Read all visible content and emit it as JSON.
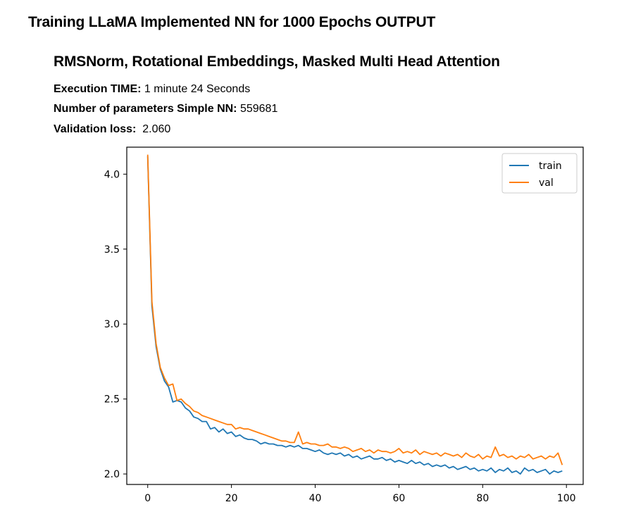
{
  "header": {
    "title": "Training LLaMA Implemented NN for 1000 Epochs OUTPUT",
    "subtitle": "RMSNorm, Rotational Embeddings, Masked Multi Head Attention"
  },
  "stats": [
    {
      "label": "Execution TIME:",
      "value": " 1 minute 24 Seconds"
    },
    {
      "label": "Number of parameters Simple NN:",
      "value": " 559681"
    },
    {
      "label": "Validation loss:",
      "value": "  2.060"
    }
  ],
  "chart_data": {
    "type": "line",
    "title": "",
    "xlabel": "",
    "ylabel": "",
    "xlim": [
      -5,
      104
    ],
    "ylim": [
      1.93,
      4.18
    ],
    "xticks": [
      0,
      20,
      40,
      60,
      80,
      100
    ],
    "yticks": [
      2.0,
      2.5,
      3.0,
      3.5,
      4.0
    ],
    "xtick_labels": [
      "0",
      "20",
      "40",
      "60",
      "80",
      "100"
    ],
    "ytick_labels": [
      "2.0",
      "2.5",
      "3.0",
      "3.5",
      "4.0"
    ],
    "legend_position": "top-right",
    "series": [
      {
        "name": "train",
        "color": "#1f77b4",
        "x": [
          0,
          1,
          2,
          3,
          4,
          5,
          6,
          7,
          8,
          9,
          10,
          11,
          12,
          13,
          14,
          15,
          16,
          17,
          18,
          19,
          20,
          21,
          22,
          23,
          24,
          25,
          26,
          27,
          28,
          29,
          30,
          31,
          32,
          33,
          34,
          35,
          36,
          37,
          38,
          39,
          40,
          41,
          42,
          43,
          44,
          45,
          46,
          47,
          48,
          49,
          50,
          51,
          52,
          53,
          54,
          55,
          56,
          57,
          58,
          59,
          60,
          61,
          62,
          63,
          64,
          65,
          66,
          67,
          68,
          69,
          70,
          71,
          72,
          73,
          74,
          75,
          76,
          77,
          78,
          79,
          80,
          81,
          82,
          83,
          84,
          85,
          86,
          87,
          88,
          89,
          90,
          91,
          92,
          93,
          94,
          95,
          96,
          97,
          98,
          99
        ],
        "values": [
          4.12,
          3.12,
          2.85,
          2.7,
          2.62,
          2.58,
          2.48,
          2.49,
          2.48,
          2.44,
          2.42,
          2.38,
          2.37,
          2.35,
          2.35,
          2.3,
          2.31,
          2.28,
          2.3,
          2.27,
          2.28,
          2.25,
          2.26,
          2.24,
          2.23,
          2.23,
          2.22,
          2.2,
          2.21,
          2.2,
          2.2,
          2.19,
          2.19,
          2.18,
          2.19,
          2.18,
          2.19,
          2.17,
          2.17,
          2.16,
          2.15,
          2.16,
          2.14,
          2.13,
          2.14,
          2.13,
          2.14,
          2.12,
          2.13,
          2.11,
          2.12,
          2.1,
          2.11,
          2.12,
          2.1,
          2.1,
          2.11,
          2.09,
          2.1,
          2.08,
          2.09,
          2.08,
          2.07,
          2.09,
          2.07,
          2.08,
          2.06,
          2.07,
          2.05,
          2.06,
          2.05,
          2.06,
          2.04,
          2.05,
          2.03,
          2.04,
          2.05,
          2.03,
          2.04,
          2.02,
          2.03,
          2.02,
          2.04,
          2.01,
          2.03,
          2.02,
          2.04,
          2.01,
          2.02,
          2.0,
          2.04,
          2.02,
          2.03,
          2.01,
          2.02,
          2.03,
          2.0,
          2.02,
          2.01,
          2.02
        ]
      },
      {
        "name": "val",
        "color": "#ff7f0e",
        "x": [
          0,
          1,
          2,
          3,
          4,
          5,
          6,
          7,
          8,
          9,
          10,
          11,
          12,
          13,
          14,
          15,
          16,
          17,
          18,
          19,
          20,
          21,
          22,
          23,
          24,
          25,
          26,
          27,
          28,
          29,
          30,
          31,
          32,
          33,
          34,
          35,
          36,
          37,
          38,
          39,
          40,
          41,
          42,
          43,
          44,
          45,
          46,
          47,
          48,
          49,
          50,
          51,
          52,
          53,
          54,
          55,
          56,
          57,
          58,
          59,
          60,
          61,
          62,
          63,
          64,
          65,
          66,
          67,
          68,
          69,
          70,
          71,
          72,
          73,
          74,
          75,
          76,
          77,
          78,
          79,
          80,
          81,
          82,
          83,
          84,
          85,
          86,
          87,
          88,
          89,
          90,
          91,
          92,
          93,
          94,
          95,
          96,
          97,
          98,
          99
        ],
        "values": [
          4.13,
          3.15,
          2.87,
          2.71,
          2.64,
          2.59,
          2.6,
          2.49,
          2.5,
          2.47,
          2.45,
          2.42,
          2.41,
          2.39,
          2.38,
          2.37,
          2.36,
          2.35,
          2.34,
          2.33,
          2.33,
          2.3,
          2.31,
          2.3,
          2.3,
          2.29,
          2.28,
          2.27,
          2.26,
          2.25,
          2.24,
          2.23,
          2.22,
          2.22,
          2.21,
          2.21,
          2.28,
          2.2,
          2.21,
          2.2,
          2.2,
          2.19,
          2.19,
          2.2,
          2.18,
          2.18,
          2.17,
          2.18,
          2.17,
          2.15,
          2.16,
          2.17,
          2.15,
          2.16,
          2.14,
          2.16,
          2.15,
          2.15,
          2.14,
          2.15,
          2.17,
          2.14,
          2.15,
          2.14,
          2.16,
          2.13,
          2.15,
          2.14,
          2.13,
          2.14,
          2.12,
          2.14,
          2.13,
          2.12,
          2.13,
          2.11,
          2.14,
          2.12,
          2.11,
          2.13,
          2.1,
          2.12,
          2.11,
          2.18,
          2.12,
          2.13,
          2.11,
          2.12,
          2.1,
          2.12,
          2.11,
          2.13,
          2.1,
          2.11,
          2.12,
          2.1,
          2.12,
          2.11,
          2.14,
          2.06
        ]
      }
    ]
  }
}
